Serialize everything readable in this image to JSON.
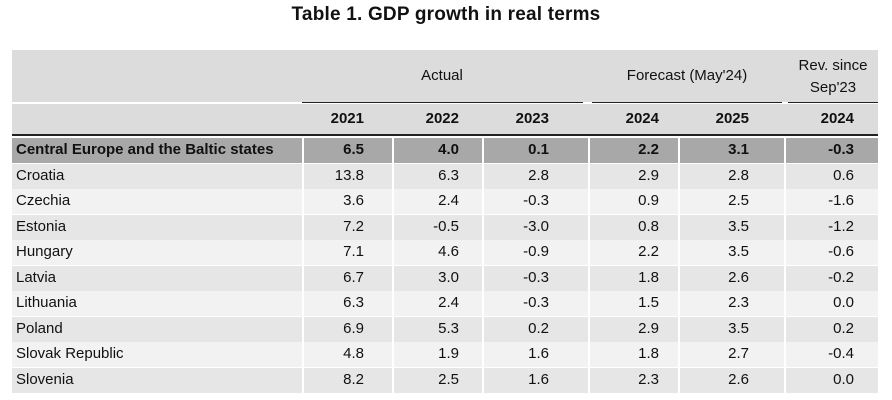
{
  "title": "Table 1. GDP growth in real terms",
  "header": {
    "groups": {
      "actual": "Actual",
      "forecast": "Forecast (May'24)",
      "revision_line1": "Rev. since",
      "revision_line2": "Sep'23"
    },
    "years": [
      "2021",
      "2022",
      "2023",
      "2024",
      "2025",
      "2024"
    ]
  },
  "rows": [
    {
      "name": "Central Europe and the Baltic states",
      "values": [
        "6.5",
        "4.0",
        "0.1",
        "2.2",
        "3.1",
        "-0.3"
      ]
    },
    {
      "name": "Croatia",
      "values": [
        "13.8",
        "6.3",
        "2.8",
        "2.9",
        "2.8",
        "0.6"
      ]
    },
    {
      "name": "Czechia",
      "values": [
        "3.6",
        "2.4",
        "-0.3",
        "0.9",
        "2.5",
        "-1.6"
      ]
    },
    {
      "name": "Estonia",
      "values": [
        "7.2",
        "-0.5",
        "-3.0",
        "0.8",
        "3.5",
        "-1.2"
      ]
    },
    {
      "name": "Hungary",
      "values": [
        "7.1",
        "4.6",
        "-0.9",
        "2.2",
        "3.5",
        "-0.6"
      ]
    },
    {
      "name": "Latvia",
      "values": [
        "6.7",
        "3.0",
        "-0.3",
        "1.8",
        "2.6",
        "-0.2"
      ]
    },
    {
      "name": "Lithuania",
      "values": [
        "6.3",
        "2.4",
        "-0.3",
        "1.5",
        "2.3",
        "0.0"
      ]
    },
    {
      "name": "Poland",
      "values": [
        "6.9",
        "5.3",
        "0.2",
        "2.9",
        "3.5",
        "0.2"
      ]
    },
    {
      "name": "Slovak Republic",
      "values": [
        "4.8",
        "1.9",
        "1.6",
        "1.8",
        "2.7",
        "-0.4"
      ]
    },
    {
      "name": "Slovenia",
      "values": [
        "8.2",
        "2.5",
        "1.6",
        "2.3",
        "2.6",
        "0.0"
      ]
    }
  ]
}
